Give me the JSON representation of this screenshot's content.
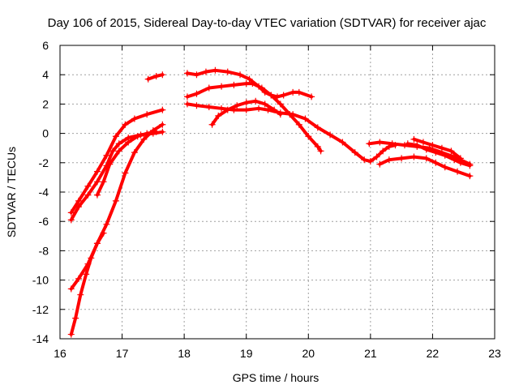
{
  "chart_data": {
    "type": "scatter",
    "title": "Day 106 of 2015, Sidereal Day-to-day VTEC variation (SDTVAR) for receiver ajac",
    "xlabel": "GPS time / hours",
    "ylabel": "SDTVAR / TECUs",
    "xlim": [
      16,
      23
    ],
    "ylim": [
      -14,
      6
    ],
    "xticks": [
      16,
      17,
      18,
      19,
      20,
      21,
      22,
      23
    ],
    "yticks": [
      -14,
      -12,
      -10,
      -8,
      -6,
      -4,
      -2,
      0,
      2,
      4,
      6
    ],
    "grid": true,
    "color": "#ff0000",
    "series": [
      {
        "name": "s1",
        "points": [
          [
            16.18,
            -5.4
          ],
          [
            16.3,
            -4.6
          ],
          [
            16.45,
            -3.6
          ],
          [
            16.6,
            -2.6
          ],
          [
            16.75,
            -1.5
          ],
          [
            16.9,
            -0.2
          ],
          [
            17.05,
            0.6
          ],
          [
            17.2,
            1.0
          ],
          [
            17.4,
            1.3
          ],
          [
            17.65,
            1.6
          ]
        ]
      },
      {
        "name": "s2",
        "points": [
          [
            16.18,
            -5.9
          ],
          [
            16.3,
            -5.0
          ],
          [
            16.45,
            -4.2
          ],
          [
            16.6,
            -3.3
          ],
          [
            16.75,
            -2.2
          ],
          [
            16.85,
            -1.2
          ],
          [
            16.95,
            -0.7
          ],
          [
            17.1,
            -0.3
          ],
          [
            17.3,
            -0.1
          ],
          [
            17.5,
            0.0
          ],
          [
            17.65,
            0.1
          ]
        ]
      },
      {
        "name": "s3",
        "points": [
          [
            16.18,
            -10.6
          ],
          [
            16.3,
            -9.9
          ],
          [
            16.45,
            -8.9
          ],
          [
            16.6,
            -7.5
          ],
          [
            16.75,
            -6.2
          ],
          [
            16.9,
            -4.6
          ],
          [
            17.05,
            -2.7
          ],
          [
            17.2,
            -1.3
          ],
          [
            17.35,
            -0.4
          ],
          [
            17.5,
            0.2
          ],
          [
            17.65,
            0.6
          ]
        ]
      },
      {
        "name": "s4",
        "points": [
          [
            16.18,
            -13.7
          ],
          [
            16.25,
            -12.6
          ],
          [
            16.33,
            -11.0
          ],
          [
            16.42,
            -9.6
          ],
          [
            16.5,
            -8.5
          ],
          [
            16.6,
            -7.5
          ],
          [
            16.7,
            -6.8
          ]
        ]
      },
      {
        "name": "s5",
        "points": [
          [
            16.6,
            -4.2
          ],
          [
            16.7,
            -3.3
          ],
          [
            16.8,
            -2.1
          ],
          [
            16.95,
            -1.2
          ],
          [
            17.1,
            -0.6
          ],
          [
            17.25,
            -0.2
          ],
          [
            17.4,
            0.0
          ],
          [
            17.55,
            0.1
          ]
        ]
      },
      {
        "name": "s6",
        "points": [
          [
            17.42,
            3.7
          ],
          [
            17.55,
            3.9
          ],
          [
            17.65,
            4.0
          ]
        ]
      },
      {
        "name": "s7",
        "points": [
          [
            18.05,
            4.1
          ],
          [
            18.2,
            4.0
          ],
          [
            18.35,
            4.2
          ],
          [
            18.5,
            4.3
          ],
          [
            18.7,
            4.2
          ],
          [
            18.9,
            4.0
          ],
          [
            19.05,
            3.7
          ],
          [
            19.2,
            3.2
          ],
          [
            19.3,
            2.8
          ],
          [
            19.4,
            2.6
          ],
          [
            19.5,
            2.5
          ],
          [
            19.6,
            2.6
          ],
          [
            19.75,
            2.8
          ],
          [
            19.85,
            2.8
          ],
          [
            20.05,
            2.5
          ]
        ]
      },
      {
        "name": "s8",
        "points": [
          [
            18.05,
            2.5
          ],
          [
            18.2,
            2.7
          ],
          [
            18.4,
            3.1
          ],
          [
            18.6,
            3.2
          ],
          [
            18.8,
            3.3
          ],
          [
            19.0,
            3.4
          ],
          [
            19.1,
            3.4
          ],
          [
            19.25,
            3.1
          ],
          [
            19.4,
            2.6
          ],
          [
            19.55,
            2.0
          ],
          [
            19.7,
            1.3
          ],
          [
            19.85,
            0.6
          ],
          [
            20.0,
            -0.2
          ],
          [
            20.15,
            -0.9
          ],
          [
            20.2,
            -1.2
          ]
        ]
      },
      {
        "name": "s9",
        "points": [
          [
            18.05,
            2.0
          ],
          [
            18.2,
            1.9
          ],
          [
            18.4,
            1.8
          ],
          [
            18.6,
            1.7
          ],
          [
            18.8,
            1.6
          ],
          [
            19.0,
            1.6
          ],
          [
            19.2,
            1.7
          ],
          [
            19.35,
            1.6
          ],
          [
            19.55,
            1.4
          ],
          [
            19.75,
            1.3
          ],
          [
            19.95,
            1.0
          ],
          [
            20.15,
            0.4
          ],
          [
            20.35,
            -0.1
          ],
          [
            20.55,
            -0.6
          ],
          [
            20.75,
            -1.3
          ],
          [
            20.9,
            -1.8
          ],
          [
            21.0,
            -1.9
          ],
          [
            21.1,
            -1.6
          ],
          [
            21.2,
            -1.2
          ],
          [
            21.3,
            -0.9
          ],
          [
            21.4,
            -0.8
          ]
        ]
      },
      {
        "name": "s10",
        "points": [
          [
            18.45,
            0.6
          ],
          [
            18.55,
            1.2
          ],
          [
            18.7,
            1.6
          ],
          [
            18.85,
            1.9
          ],
          [
            19.0,
            2.1
          ],
          [
            19.15,
            2.2
          ],
          [
            19.3,
            2.0
          ],
          [
            19.45,
            1.6
          ],
          [
            19.55,
            1.3
          ]
        ]
      },
      {
        "name": "s11",
        "points": [
          [
            20.98,
            -0.7
          ],
          [
            21.15,
            -0.6
          ],
          [
            21.35,
            -0.7
          ],
          [
            21.55,
            -0.8
          ],
          [
            21.75,
            -0.9
          ],
          [
            21.95,
            -1.0
          ],
          [
            22.15,
            -1.3
          ],
          [
            22.35,
            -1.6
          ],
          [
            22.6,
            -2.1
          ]
        ]
      },
      {
        "name": "s12",
        "points": [
          [
            21.6,
            -0.7
          ],
          [
            21.75,
            -0.8
          ],
          [
            21.9,
            -1.1
          ],
          [
            22.05,
            -1.3
          ],
          [
            22.2,
            -1.5
          ],
          [
            22.35,
            -1.8
          ],
          [
            22.45,
            -2.0
          ],
          [
            22.6,
            -2.2
          ]
        ]
      },
      {
        "name": "s13",
        "points": [
          [
            21.15,
            -2.1
          ],
          [
            21.3,
            -1.8
          ],
          [
            21.5,
            -1.7
          ],
          [
            21.7,
            -1.6
          ],
          [
            21.9,
            -1.7
          ],
          [
            22.05,
            -2.0
          ],
          [
            22.2,
            -2.3
          ],
          [
            22.4,
            -2.6
          ],
          [
            22.6,
            -2.9
          ]
        ]
      },
      {
        "name": "s14",
        "points": [
          [
            21.7,
            -0.4
          ],
          [
            21.85,
            -0.6
          ],
          [
            22.0,
            -0.8
          ],
          [
            22.15,
            -1.0
          ],
          [
            22.3,
            -1.2
          ],
          [
            22.45,
            -1.7
          ]
        ]
      }
    ]
  }
}
